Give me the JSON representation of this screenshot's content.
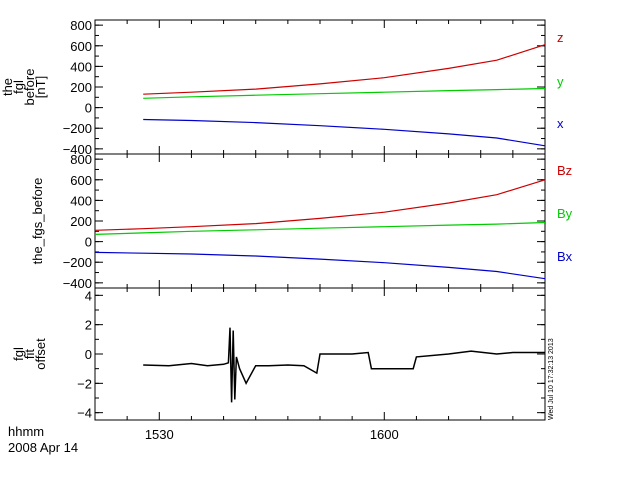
{
  "footer": {
    "time_label": "hhmm",
    "date_label": "2008 Apr 14",
    "stamp": "Wed Jul 10 17:32:13 2013"
  },
  "colors": {
    "red": "#cc0000",
    "green": "#00cc00",
    "blue": "#0000cc",
    "black": "#000000"
  },
  "chart_data": [
    {
      "type": "line",
      "ylabel": [
        "the",
        "fgl",
        "before",
        "[nT]"
      ],
      "ylim": [
        -450,
        850
      ],
      "yticks": [
        800,
        600,
        400,
        200,
        0,
        -200,
        -400
      ],
      "xlim": [
        1510,
        1650
      ],
      "grid": false,
      "legend_position": "right",
      "series": [
        {
          "name": "z",
          "color": "#cc0000",
          "x": [
            1525,
            1540,
            1560,
            1580,
            1600,
            1620,
            1635,
            1650
          ],
          "y": [
            130,
            150,
            180,
            230,
            290,
            380,
            460,
            610
          ]
        },
        {
          "name": "y",
          "color": "#00cc00",
          "x": [
            1525,
            1540,
            1560,
            1580,
            1600,
            1620,
            1635,
            1650
          ],
          "y": [
            90,
            105,
            120,
            135,
            150,
            165,
            175,
            185
          ]
        },
        {
          "name": "x",
          "color": "#0000cc",
          "x": [
            1525,
            1540,
            1560,
            1580,
            1600,
            1620,
            1635,
            1650
          ],
          "y": [
            -115,
            -125,
            -145,
            -175,
            -210,
            -255,
            -295,
            -370
          ]
        }
      ]
    },
    {
      "type": "line",
      "ylabel": [
        "the_fgs_before"
      ],
      "ylim": [
        -450,
        850
      ],
      "yticks": [
        800,
        600,
        400,
        200,
        0,
        -200,
        -400
      ],
      "xlim": [
        1510,
        1650
      ],
      "grid": false,
      "legend_position": "right",
      "series": [
        {
          "name": "Bz",
          "color": "#cc0000",
          "x": [
            1510,
            1525,
            1540,
            1560,
            1580,
            1600,
            1620,
            1635,
            1650
          ],
          "y": [
            110,
            125,
            145,
            175,
            225,
            285,
            375,
            455,
            600
          ]
        },
        {
          "name": "By",
          "color": "#00cc00",
          "x": [
            1510,
            1525,
            1540,
            1560,
            1580,
            1600,
            1620,
            1635,
            1650
          ],
          "y": [
            70,
            85,
            100,
            115,
            130,
            145,
            160,
            170,
            185
          ]
        },
        {
          "name": "Bx",
          "color": "#0000cc",
          "x": [
            1510,
            1525,
            1540,
            1560,
            1580,
            1600,
            1620,
            1635,
            1650
          ],
          "y": [
            -105,
            -112,
            -120,
            -140,
            -170,
            -205,
            -250,
            -290,
            -360
          ]
        }
      ]
    },
    {
      "type": "line",
      "ylabel": [
        "fgl",
        "fit",
        "offset"
      ],
      "ylim": [
        -4.5,
        4.5
      ],
      "yticks": [
        4,
        2,
        0,
        -2,
        -4
      ],
      "xlim": [
        1510,
        1650
      ],
      "xticks": [
        1530,
        1600
      ],
      "xticklabels": [
        "1530",
        "1600"
      ],
      "grid": false,
      "series": [
        {
          "name": "",
          "color": "#000000",
          "x": [
            1525,
            1533,
            1540,
            1545,
            1550,
            1551.5,
            1552,
            1552.5,
            1553,
            1553.5,
            1554,
            1555,
            1557,
            1560,
            1563,
            1564,
            1570,
            1575,
            1579,
            1580,
            1590,
            1595,
            1596,
            1605,
            1609,
            1610,
            1620,
            1627,
            1635,
            1640,
            1650
          ],
          "y": [
            -0.75,
            -0.8,
            -0.65,
            -0.8,
            -0.7,
            -0.6,
            1.8,
            -3.3,
            1.6,
            -3.1,
            -0.2,
            -1.0,
            -2.0,
            -0.8,
            -0.8,
            -0.8,
            -0.75,
            -0.8,
            -1.3,
            0.0,
            0.0,
            0.1,
            -1.0,
            -1.0,
            -1.0,
            -0.2,
            0.0,
            0.2,
            0.0,
            0.1,
            0.1
          ]
        }
      ]
    }
  ]
}
